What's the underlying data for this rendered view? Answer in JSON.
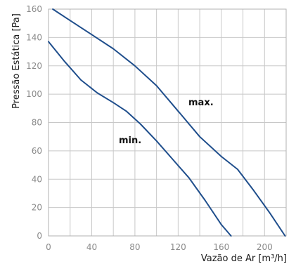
{
  "chart_data": {
    "type": "line",
    "xlabel": "Vazão de Ar [m³/h]",
    "ylabel": "Pressão Estática [Pa]",
    "xlim": [
      0,
      220
    ],
    "ylim": [
      0,
      160
    ],
    "x_ticks": [
      0,
      40,
      80,
      120,
      160,
      200
    ],
    "y_ticks": [
      0,
      20,
      40,
      60,
      80,
      100,
      120,
      140,
      160
    ],
    "grid": true,
    "line_color": "#1f4e8c",
    "series": [
      {
        "name": "max.",
        "x": [
          4,
          20,
          40,
          60,
          80,
          100,
          120,
          140,
          160,
          175,
          190,
          205,
          219
        ],
        "y": [
          160,
          152,
          142,
          132,
          120,
          106,
          88,
          70,
          56,
          47,
          32,
          16,
          0
        ]
      },
      {
        "name": "min.",
        "x": [
          0,
          15,
          30,
          45,
          60,
          72,
          85,
          100,
          115,
          130,
          145,
          160,
          169
        ],
        "y": [
          137,
          123,
          110,
          101,
          94,
          88,
          79,
          67,
          54,
          41,
          25,
          8,
          0
        ]
      }
    ]
  }
}
